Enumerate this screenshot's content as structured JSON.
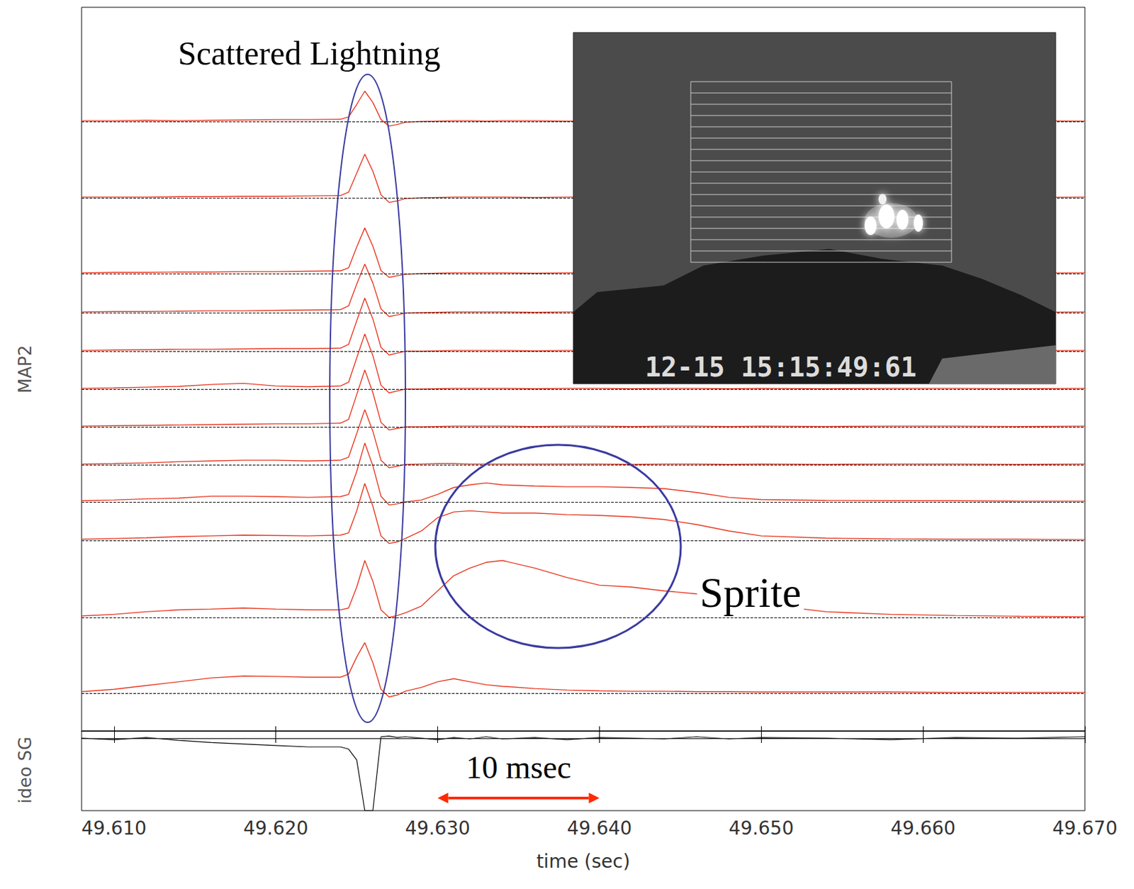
{
  "chart_data": {
    "type": "line",
    "x_label": "time (sec)",
    "y_label": "MAP2",
    "tick_labels": "x",
    "xlim": [
      49.608,
      49.67
    ],
    "xticks": [
      {
        "value": 49.61,
        "label": "49.610"
      },
      {
        "value": 49.62,
        "label": "49.620"
      },
      {
        "value": 49.63,
        "label": "49.630"
      },
      {
        "value": 49.64,
        "label": "49.640"
      },
      {
        "value": 49.65,
        "label": "49.650"
      },
      {
        "value": 49.66,
        "label": "49.660"
      },
      {
        "value": 49.67,
        "label": "49.670"
      }
    ],
    "ylim": [
      -0.5,
      2
    ],
    "baseline": 0,
    "x": [
      49.608,
      49.61,
      49.612,
      49.614,
      49.616,
      49.618,
      49.62,
      49.622,
      49.624,
      49.6245,
      49.625,
      49.6255,
      49.626,
      49.6265,
      49.627,
      49.6275,
      49.628,
      49.629,
      49.63,
      49.631,
      49.632,
      49.633,
      49.634,
      49.636,
      49.638,
      49.64,
      49.642,
      49.644,
      49.646,
      49.648,
      49.65,
      49.654,
      49.658,
      49.662,
      49.666,
      49.67
    ],
    "series": [
      {
        "color": "#e8331c",
        "values": [
          0.02,
          0.02,
          0.03,
          0.02,
          0.03,
          0.04,
          0.05,
          0.05,
          0.06,
          0.12,
          0.45,
          0.8,
          0.5,
          0.05,
          -0.12,
          -0.08,
          -0.02,
          0,
          0.01,
          0.02,
          0.02,
          0.01,
          0.02,
          0.02,
          0.01,
          0.02,
          0.01,
          0.02,
          0.02,
          0.01,
          0.02,
          0.02,
          0.01,
          0.02,
          0.02,
          0.01
        ]
      },
      {
        "color": "#e8331c",
        "values": [
          0.02,
          0.02,
          0.02,
          0.03,
          0.03,
          0.04,
          0.04,
          0.05,
          0.06,
          0.15,
          0.65,
          1.15,
          0.7,
          0.08,
          -0.12,
          -0.08,
          -0.02,
          0,
          0.01,
          0.02,
          0.02,
          0.02,
          0.02,
          0.01,
          0.02,
          0.02,
          0.01,
          0.02,
          0.02,
          0.01,
          0.02,
          0.01,
          0.02,
          0.02,
          0.01,
          0.02
        ]
      },
      {
        "color": "#e8331c",
        "values": [
          0.02,
          0.03,
          0.03,
          0.04,
          0.04,
          0.05,
          0.05,
          0.06,
          0.07,
          0.15,
          0.7,
          1.2,
          0.72,
          0.08,
          -0.1,
          -0.06,
          -0.02,
          0,
          0.01,
          0.02,
          0.02,
          0.02,
          0.02,
          0.01,
          0.02,
          0.02,
          0.01,
          0.02,
          0.02,
          0.01,
          0.02,
          0.01,
          0.02,
          0.02,
          0.01,
          0.02
        ]
      },
      {
        "color": "#e8331c",
        "values": [
          0.02,
          0.03,
          0.03,
          0.04,
          0.05,
          0.05,
          0.06,
          0.07,
          0.08,
          0.18,
          0.75,
          1.28,
          0.78,
          0.1,
          -0.1,
          -0.06,
          -0.01,
          0,
          0.01,
          0.02,
          0.02,
          0.02,
          0.02,
          0.01,
          0.02,
          0.02,
          0.01,
          0.02,
          0.02,
          0.01,
          0.02,
          0.01,
          0.02,
          0.02,
          0.01,
          0.02
        ]
      },
      {
        "color": "#e8331c",
        "values": [
          0.02,
          0.03,
          0.04,
          0.05,
          0.05,
          0.06,
          0.07,
          0.07,
          0.08,
          0.18,
          0.8,
          1.4,
          0.85,
          0.1,
          -0.1,
          -0.05,
          0,
          0,
          0.01,
          0.02,
          0.02,
          0.02,
          0.02,
          0.01,
          0.02,
          0.02,
          0.01,
          0.02,
          0.02,
          0.01,
          0.02,
          0.01,
          0.02,
          0.02,
          0.01,
          0.02
        ]
      },
      {
        "color": "#e8331c",
        "values": [
          0.02,
          0.03,
          0.05,
          0.07,
          0.12,
          0.15,
          0.08,
          0.06,
          0.08,
          0.18,
          0.82,
          1.45,
          0.88,
          0.1,
          -0.1,
          -0.05,
          0,
          0,
          0.01,
          0.02,
          0.02,
          0.02,
          0.02,
          0.01,
          0.02,
          0.02,
          0.01,
          0.02,
          0.02,
          0.01,
          0.02,
          0.01,
          0.02,
          0.02,
          0.01,
          0.02
        ]
      },
      {
        "color": "#e8331c",
        "values": [
          0.02,
          0.03,
          0.04,
          0.05,
          0.06,
          0.07,
          0.08,
          0.08,
          0.1,
          0.2,
          0.85,
          1.5,
          0.9,
          0.12,
          -0.08,
          -0.04,
          0,
          0,
          0.01,
          0.02,
          0.02,
          0.02,
          0.02,
          0.01,
          0.02,
          0.02,
          0.01,
          0.02,
          0.02,
          0.01,
          0.02,
          0.01,
          0.02,
          0.02,
          0.01,
          0.02
        ]
      },
      {
        "color": "#e8331c",
        "values": [
          0.02,
          0.03,
          0.05,
          0.08,
          0.1,
          0.12,
          0.12,
          0.1,
          0.12,
          0.2,
          0.82,
          1.45,
          0.88,
          0.12,
          -0.08,
          -0.04,
          0.01,
          0.02,
          0.03,
          0.03,
          0.02,
          0.02,
          0.02,
          0.02,
          0.02,
          0.02,
          0.01,
          0.02,
          0.02,
          0.01,
          0.02,
          0.01,
          0.02,
          0.02,
          0.01,
          0.02
        ]
      },
      {
        "color": "#e8331c",
        "values": [
          0.03,
          0.05,
          0.08,
          0.1,
          0.15,
          0.15,
          0.14,
          0.12,
          0.14,
          0.2,
          0.8,
          1.55,
          0.95,
          0.15,
          -0.08,
          -0.05,
          0,
          0.05,
          0.2,
          0.38,
          0.45,
          0.5,
          0.45,
          0.42,
          0.4,
          0.4,
          0.38,
          0.35,
          0.25,
          0.12,
          0.06,
          0.04,
          0.03,
          0.03,
          0.02,
          0.02
        ]
      },
      {
        "color": "#e8331c",
        "values": [
          0.03,
          0.05,
          0.07,
          0.1,
          0.12,
          0.14,
          0.13,
          0.12,
          0.14,
          0.2,
          0.78,
          1.5,
          0.9,
          0.12,
          -0.08,
          -0.04,
          0.05,
          0.25,
          0.6,
          0.75,
          0.78,
          0.75,
          0.72,
          0.72,
          0.68,
          0.66,
          0.62,
          0.55,
          0.42,
          0.25,
          0.12,
          0.06,
          0.04,
          0.03,
          0.03,
          0.02
        ]
      },
      {
        "color": "#e8331c",
        "values": [
          0.04,
          0.08,
          0.15,
          0.2,
          0.22,
          0.25,
          0.22,
          0.2,
          0.2,
          0.25,
          0.8,
          1.5,
          0.95,
          0.2,
          0,
          0.05,
          0.12,
          0.3,
          0.7,
          1.1,
          1.3,
          1.45,
          1.5,
          1.3,
          1.05,
          0.85,
          0.8,
          0.7,
          0.62,
          0.52,
          0.35,
          0.15,
          0.08,
          0.05,
          0.03,
          0.02
        ]
      },
      {
        "color": "#e8331c",
        "values": [
          0.04,
          0.1,
          0.2,
          0.3,
          0.4,
          0.45,
          0.44,
          0.42,
          0.42,
          0.5,
          0.95,
          1.33,
          0.8,
          0.1,
          -0.1,
          -0.05,
          0.05,
          0.15,
          0.3,
          0.38,
          0.3,
          0.22,
          0.18,
          0.12,
          0.08,
          0.06,
          0.05,
          0.05,
          0.04,
          0.04,
          0.03,
          0.03,
          0.03,
          0.02,
          0.02,
          0.02
        ]
      }
    ],
    "video": {
      "label": "ideo SG",
      "color": "#000000",
      "ylim": [
        -1,
        0.1
      ],
      "values": [
        0,
        -0.02,
        0.01,
        -0.03,
        -0.06,
        -0.08,
        -0.1,
        -0.12,
        -0.12,
        -0.15,
        -0.3,
        -1,
        -1,
        0.02,
        0.03,
        0.01,
        0.02,
        0,
        -0.02,
        0.01,
        -0.01,
        0.02,
        -0.01,
        0.01,
        -0.02,
        0.01,
        0,
        -0.01,
        0.02,
        -0.01,
        0.01,
        0,
        -0.02,
        0.01,
        0,
        0.02
      ]
    },
    "annotations": [
      {
        "text": "Scattered Lightning",
        "color": "#3a3aa0"
      },
      {
        "text": "Sprite",
        "color": "#3a3aa0"
      }
    ],
    "scale_bar": {
      "label": "10 msec",
      "from": 49.63,
      "to": 49.64,
      "color": "#ff2a00"
    },
    "inset": {
      "timestamp": "12-15 15:15:49:61"
    }
  }
}
